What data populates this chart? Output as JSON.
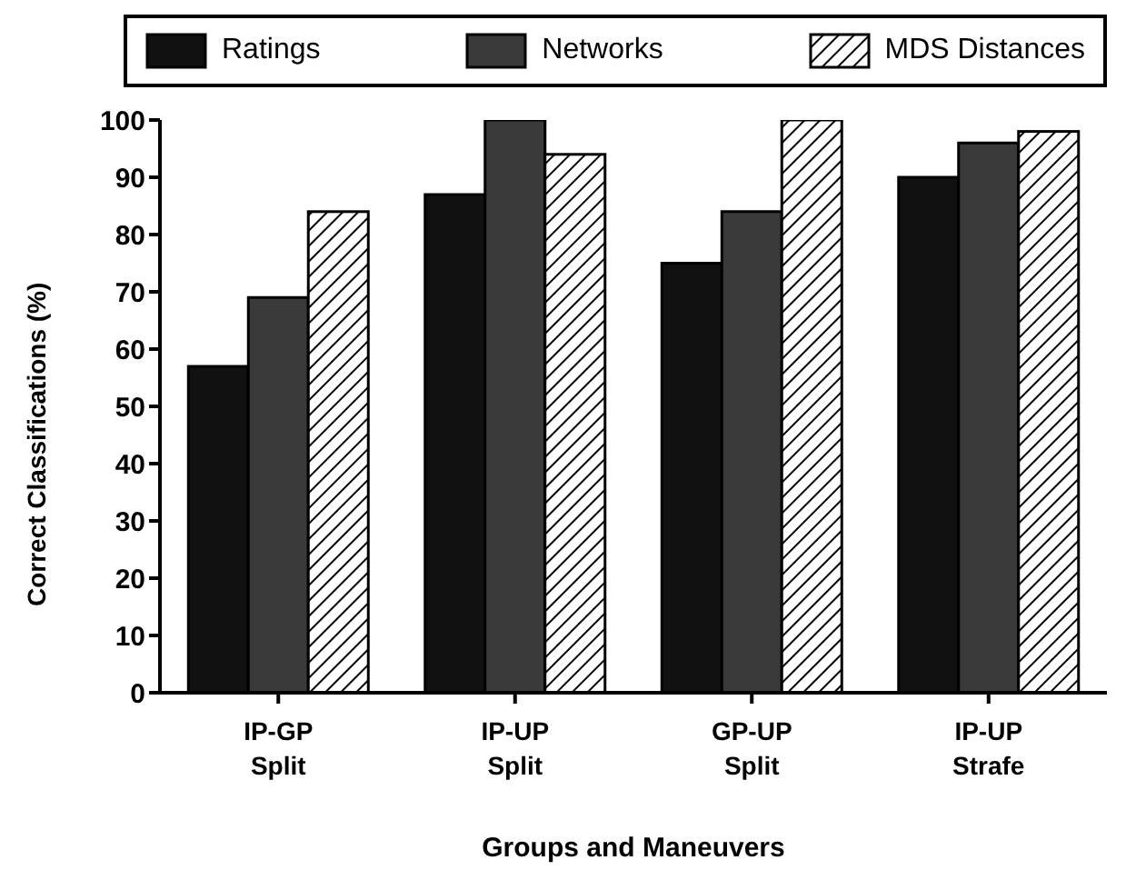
{
  "chart_data": {
    "type": "bar",
    "xlabel": "Groups and Maneuvers",
    "ylabel": "Correct Classifications (%)",
    "categories": [
      "IP-GP Split",
      "IP-UP Split",
      "GP-UP Split",
      "IP-UP Strafe"
    ],
    "series": [
      {
        "name": "Ratings",
        "color": "#111111",
        "values": [
          57,
          87,
          75,
          90
        ]
      },
      {
        "name": "Networks",
        "color": "#3a3a3a",
        "values": [
          69,
          100,
          84,
          96
        ]
      },
      {
        "name": "MDS Distances",
        "color": "#ffffff",
        "values": [
          84,
          94,
          100,
          98
        ]
      }
    ],
    "ylim": [
      0,
      100
    ],
    "yticks": [
      0,
      10,
      20,
      30,
      40,
      50,
      60,
      70,
      80,
      90,
      100
    ],
    "grid": false,
    "legend": "top"
  }
}
